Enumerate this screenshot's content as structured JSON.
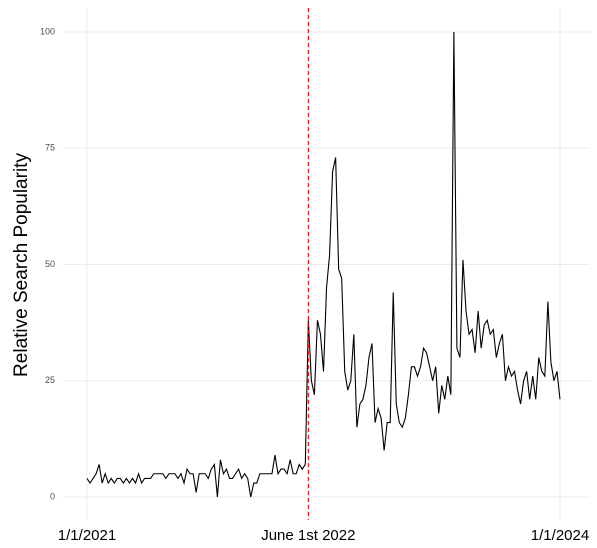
{
  "chart_data": {
    "type": "line",
    "y_label": "Relative Search Popularity",
    "values": [
      4,
      3,
      4,
      5,
      7,
      3,
      5,
      3,
      4,
      3,
      4,
      4,
      3,
      4,
      3,
      4,
      3,
      5,
      3,
      4,
      4,
      4,
      5,
      5,
      5,
      5,
      4,
      5,
      5,
      5,
      4,
      5,
      3,
      6,
      5,
      5,
      1,
      5,
      5,
      5,
      4,
      6,
      7,
      0,
      8,
      5,
      6,
      4,
      4,
      5,
      6,
      4,
      5,
      4,
      0,
      3,
      3,
      5,
      5,
      5,
      5,
      5,
      9,
      5,
      6,
      6,
      5,
      8,
      5,
      5,
      7,
      6,
      7,
      38,
      25,
      22,
      38,
      35,
      27,
      45,
      52,
      70,
      73,
      49,
      47,
      27,
      23,
      25,
      35,
      15,
      20,
      21,
      24,
      30,
      33,
      16,
      19,
      17,
      10,
      16,
      16,
      44,
      20,
      16,
      15,
      17,
      22,
      28,
      28,
      26,
      28,
      32,
      31,
      28,
      25,
      28,
      18,
      24,
      21,
      26,
      22,
      100,
      32,
      30,
      51,
      40,
      35,
      36,
      31,
      40,
      32,
      37,
      38,
      35,
      36,
      30,
      33,
      35,
      25,
      28,
      26,
      27,
      23,
      20,
      25,
      27,
      21,
      26,
      21,
      30,
      27,
      26,
      42,
      29,
      25,
      27,
      21
    ],
    "color": "#000000",
    "xlim": [
      0,
      156
    ],
    "xticks": [
      {
        "value": 0,
        "label": "1/1/2021"
      },
      {
        "value": 73,
        "label": "June 1st 2022"
      },
      {
        "value": 156,
        "label": "1/1/2024"
      }
    ],
    "highlight_tick": 1,
    "highlight_color": "#ff0000",
    "ylim": [
      0,
      100
    ],
    "yticks": [
      0,
      25,
      50,
      75,
      100
    ],
    "grid": true
  }
}
